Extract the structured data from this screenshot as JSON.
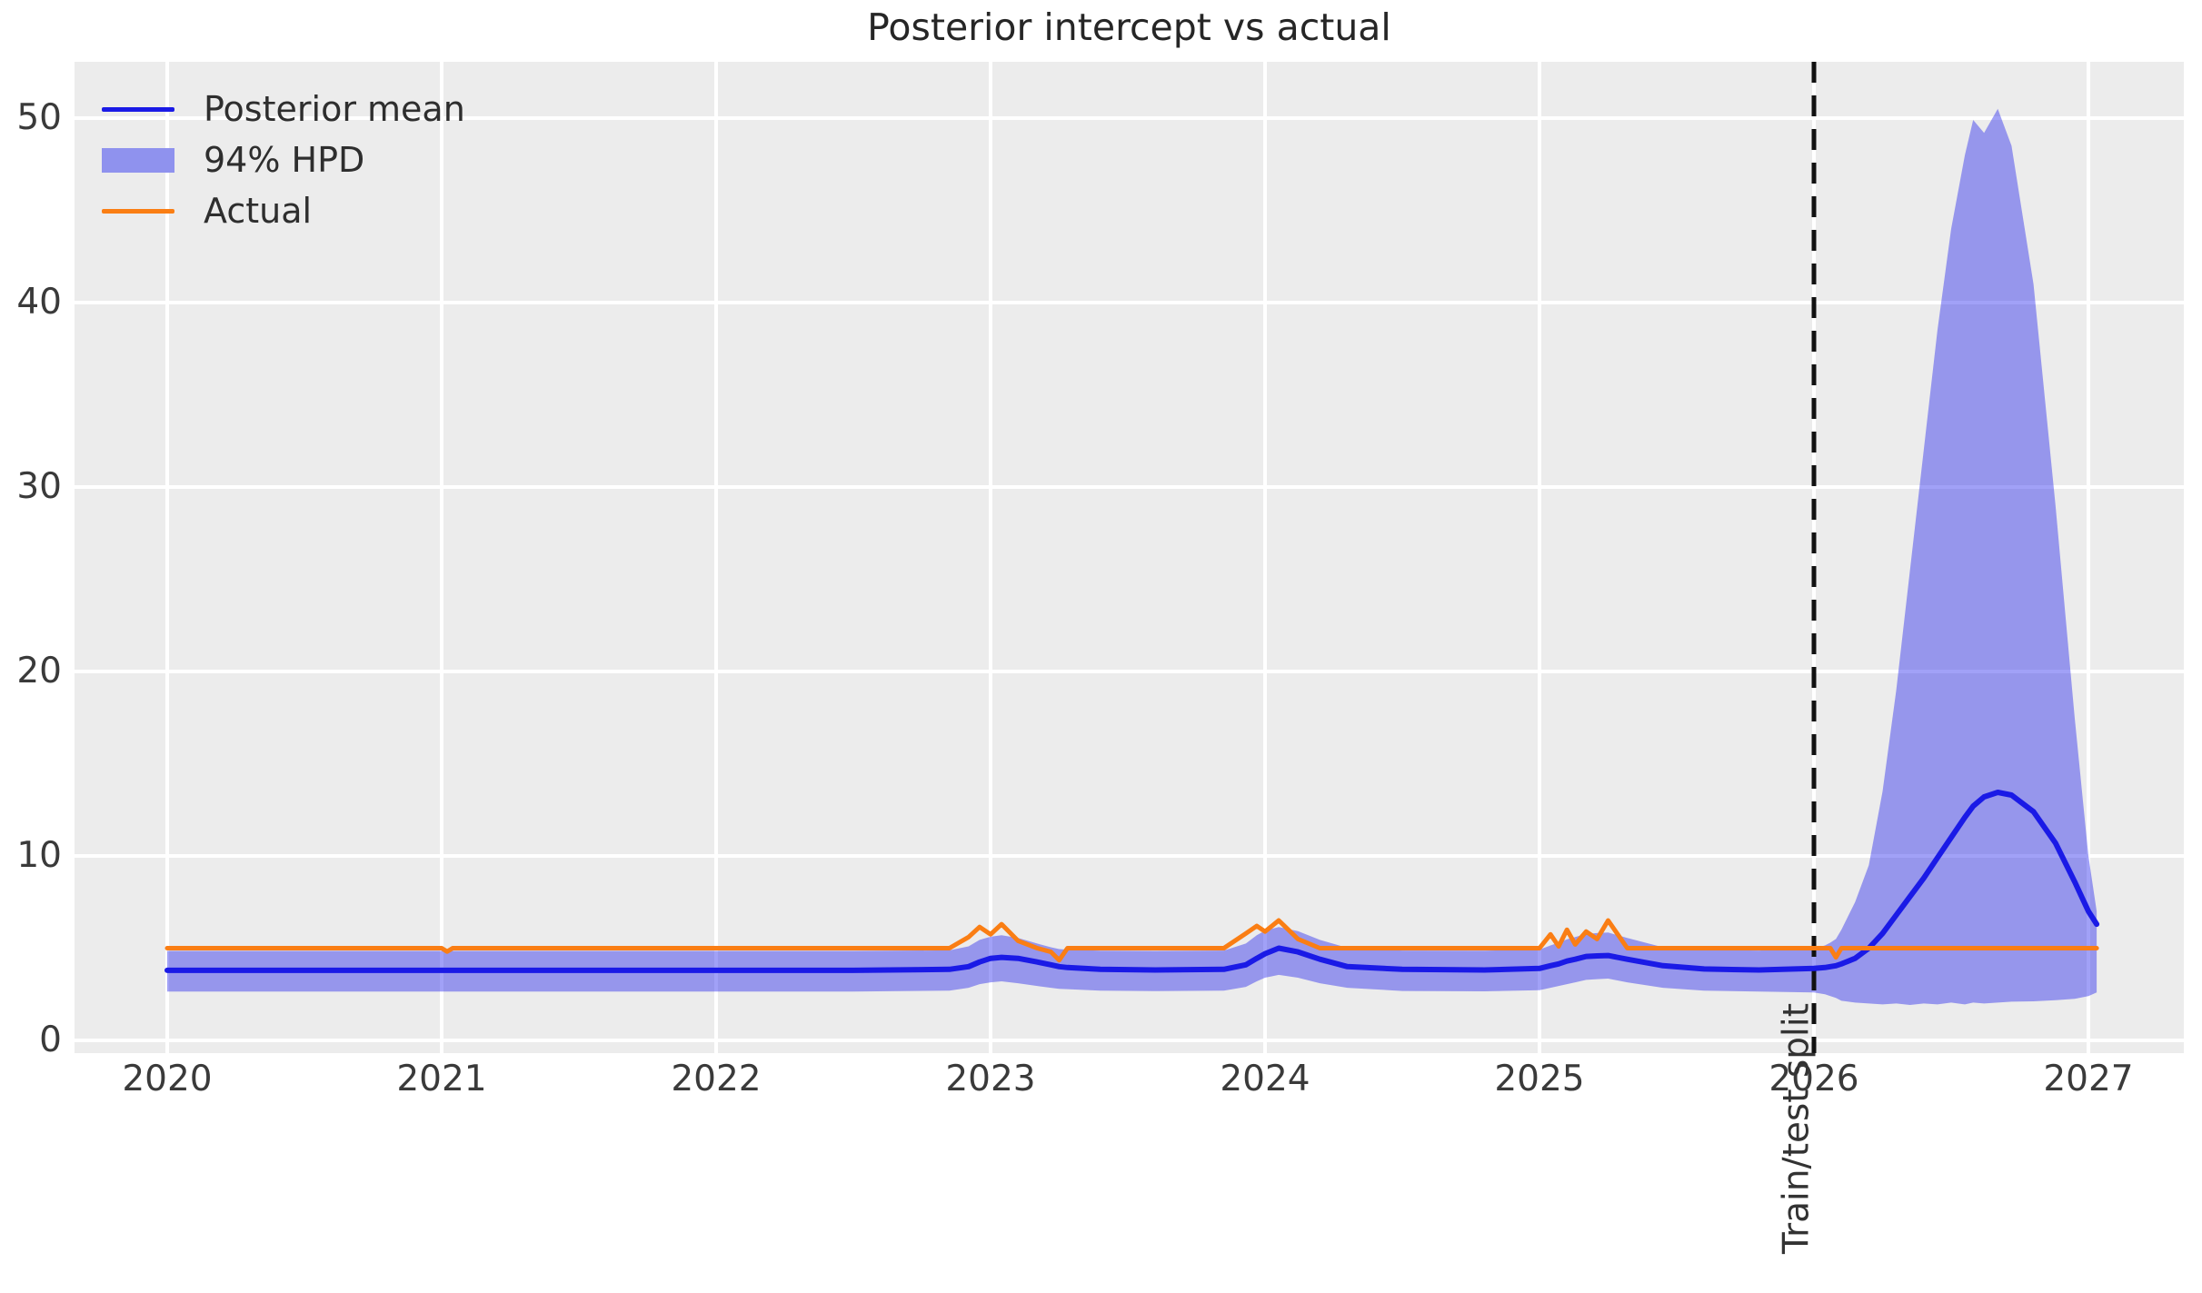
{
  "title": "Posterior intercept vs actual",
  "legend": {
    "position": "upper left",
    "items": [
      {
        "label": "Posterior mean",
        "type": "line",
        "color": "#1a1ae6"
      },
      {
        "label": "94% HPD",
        "type": "patch",
        "color": "#8f92ee"
      },
      {
        "label": "Actual",
        "type": "line",
        "color": "#fa7e14"
      }
    ]
  },
  "colors": {
    "figure_background": "#ffffff",
    "plot_background": "#ececec",
    "grid": "#ffffff",
    "mean_line": "#1a1ae6",
    "hpd_band": "rgba(30,30,235,0.42)",
    "actual_line": "#fa7e14",
    "vline": "#111111",
    "text": "#3a3a3a"
  },
  "chart_data": {
    "type": "line",
    "title": "Posterior intercept vs actual",
    "xlabel": "",
    "ylabel": "",
    "x_ticks": [
      2020,
      2021,
      2022,
      2023,
      2024,
      2025,
      2026,
      2027
    ],
    "y_ticks": [
      0,
      10,
      20,
      30,
      40,
      50
    ],
    "xlim": [
      2019.66,
      2027.35
    ],
    "ylim": [
      -0.69,
      53.05
    ],
    "grid": true,
    "legend_position": "upper left",
    "vline": {
      "x": 2026.0,
      "style": "dashed",
      "color": "#111111",
      "label": "Train/test split"
    },
    "x": [
      2020.0,
      2020.5,
      2021.0,
      2021.02,
      2021.04,
      2021.06,
      2021.5,
      2022.0,
      2022.5,
      2022.85,
      2022.92,
      2022.96,
      2023.0,
      2023.04,
      2023.1,
      2023.17,
      2023.22,
      2023.25,
      2023.28,
      2023.4,
      2023.6,
      2023.85,
      2023.93,
      2023.97,
      2024.0,
      2024.05,
      2024.12,
      2024.2,
      2024.3,
      2024.5,
      2024.8,
      2025.0,
      2025.04,
      2025.07,
      2025.1,
      2025.13,
      2025.17,
      2025.21,
      2025.25,
      2025.32,
      2025.45,
      2025.6,
      2025.8,
      2026.0,
      2026.04,
      2026.06,
      2026.08,
      2026.1,
      2026.15,
      2026.2,
      2026.25,
      2026.3,
      2026.35,
      2026.4,
      2026.45,
      2026.5,
      2026.55,
      2026.58,
      2026.62,
      2026.67,
      2026.72,
      2026.8,
      2026.88,
      2026.95,
      2027.0,
      2027.03
    ],
    "series": [
      {
        "name": "Posterior mean",
        "values": [
          3.8,
          3.8,
          3.8,
          3.8,
          3.8,
          3.8,
          3.8,
          3.8,
          3.8,
          3.85,
          4.0,
          4.25,
          4.45,
          4.5,
          4.45,
          4.25,
          4.1,
          4.0,
          3.95,
          3.85,
          3.82,
          3.85,
          4.1,
          4.45,
          4.7,
          5.0,
          4.8,
          4.4,
          4.0,
          3.85,
          3.82,
          3.9,
          4.05,
          4.15,
          4.3,
          4.4,
          4.55,
          4.58,
          4.6,
          4.4,
          4.05,
          3.87,
          3.82,
          3.9,
          3.95,
          4.0,
          4.05,
          4.15,
          4.45,
          5.0,
          5.8,
          6.8,
          7.8,
          8.8,
          9.9,
          11.0,
          12.1,
          12.7,
          13.2,
          13.45,
          13.3,
          12.4,
          10.7,
          8.6,
          7.0,
          6.3
        ]
      },
      {
        "name": "94% HPD lower",
        "values": [
          2.65,
          2.65,
          2.65,
          2.65,
          2.65,
          2.65,
          2.65,
          2.65,
          2.65,
          2.7,
          2.85,
          3.05,
          3.15,
          3.2,
          3.1,
          2.95,
          2.85,
          2.8,
          2.78,
          2.7,
          2.67,
          2.7,
          2.9,
          3.2,
          3.4,
          3.55,
          3.4,
          3.1,
          2.85,
          2.68,
          2.66,
          2.72,
          2.85,
          2.95,
          3.05,
          3.15,
          3.28,
          3.32,
          3.35,
          3.15,
          2.85,
          2.7,
          2.65,
          2.6,
          2.5,
          2.4,
          2.3,
          2.15,
          2.05,
          2.0,
          1.95,
          2.0,
          1.92,
          2.0,
          1.95,
          2.05,
          1.95,
          2.05,
          2.0,
          2.05,
          2.1,
          2.12,
          2.18,
          2.25,
          2.4,
          2.6
        ]
      },
      {
        "name": "94% HPD upper",
        "values": [
          4.85,
          4.85,
          4.85,
          4.85,
          4.85,
          4.85,
          4.85,
          4.85,
          4.85,
          4.88,
          5.1,
          5.45,
          5.62,
          5.7,
          5.55,
          5.25,
          5.05,
          4.95,
          4.92,
          4.86,
          4.85,
          4.87,
          5.25,
          5.7,
          5.95,
          6.15,
          5.92,
          5.45,
          5.02,
          4.87,
          4.86,
          4.92,
          5.15,
          5.3,
          5.48,
          5.6,
          5.78,
          5.82,
          5.85,
          5.55,
          5.05,
          4.9,
          4.87,
          5.0,
          5.15,
          5.3,
          5.5,
          6.0,
          7.5,
          9.5,
          13.5,
          19.0,
          25.5,
          32.0,
          38.5,
          44.0,
          48.0,
          49.9,
          49.2,
          50.5,
          48.5,
          41.0,
          29.0,
          17.5,
          10.0,
          7.0
        ]
      },
      {
        "name": "Actual",
        "values": [
          5.0,
          5.0,
          5.0,
          4.82,
          5.0,
          5.0,
          5.0,
          5.0,
          5.0,
          5.0,
          5.6,
          6.15,
          5.75,
          6.3,
          5.4,
          5.0,
          4.8,
          4.35,
          5.0,
          5.0,
          5.0,
          5.0,
          5.8,
          6.2,
          5.9,
          6.5,
          5.5,
          5.0,
          5.0,
          5.0,
          5.0,
          5.0,
          5.75,
          5.1,
          6.0,
          5.2,
          5.9,
          5.5,
          6.5,
          5.0,
          5.0,
          5.0,
          5.0,
          5.0,
          5.0,
          5.0,
          4.5,
          5.0,
          5.0,
          5.0,
          5.0,
          5.0,
          5.0,
          5.0,
          5.0,
          5.0,
          5.0,
          5.0,
          5.0,
          5.0,
          5.0,
          5.0,
          5.0,
          5.0,
          5.0,
          5.0
        ]
      }
    ]
  }
}
